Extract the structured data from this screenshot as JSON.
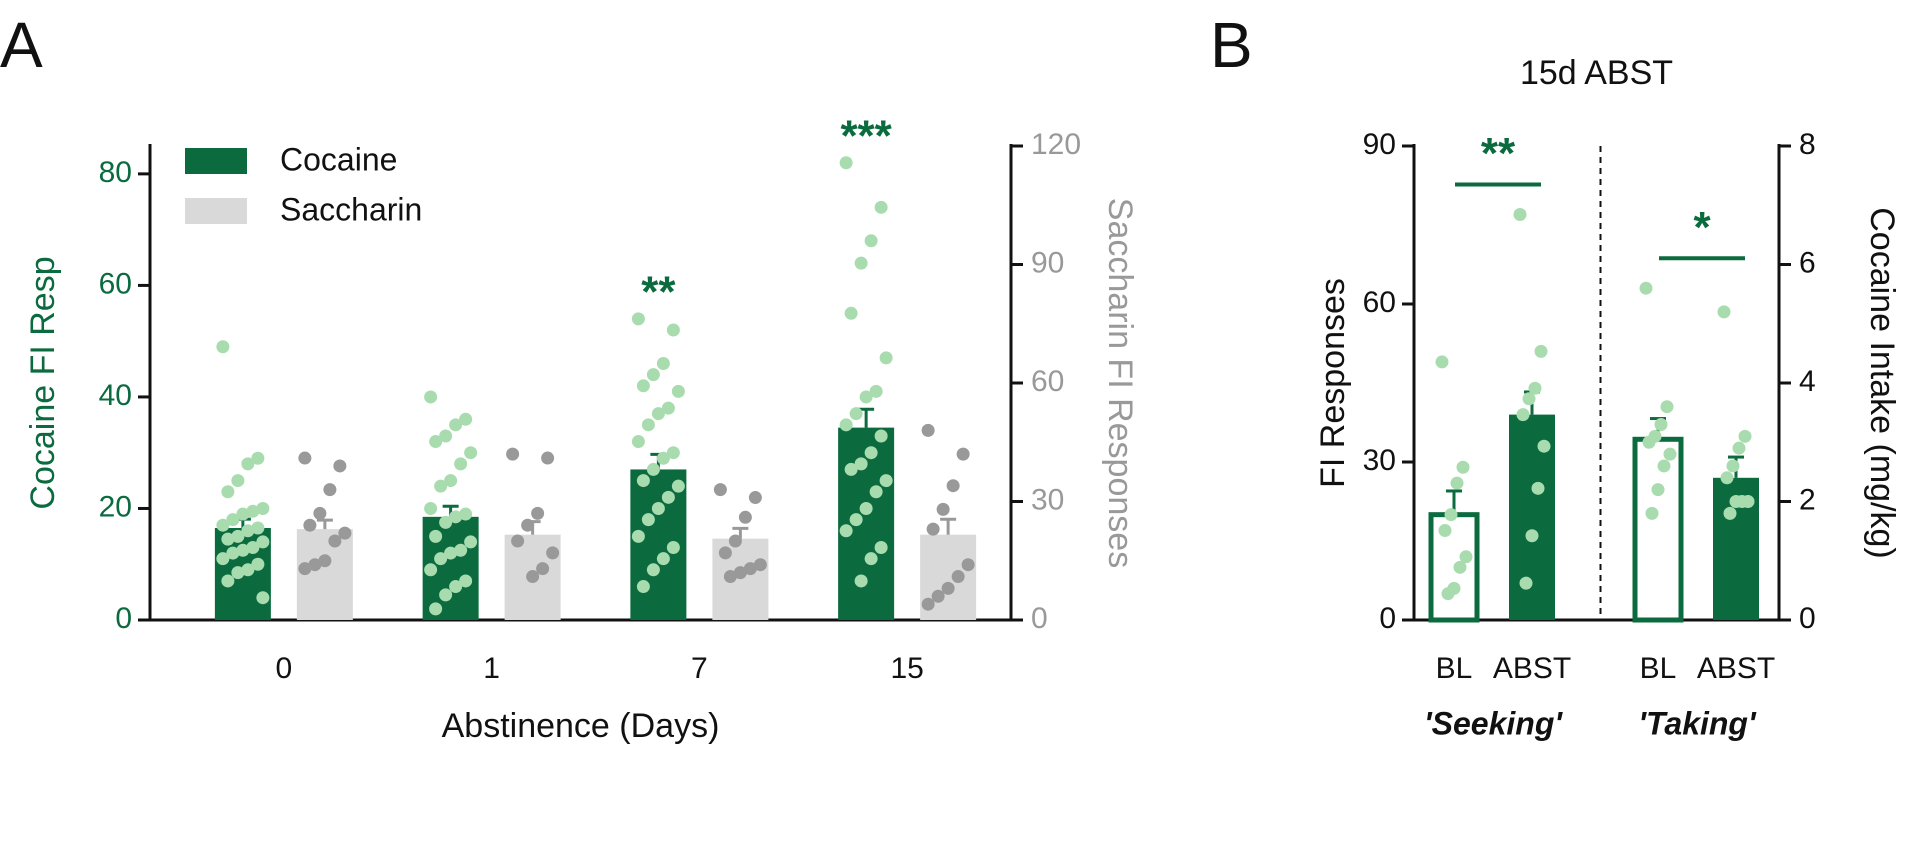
{
  "chart_data": [
    {
      "type": "bar",
      "panel": "A",
      "categories": [
        "0",
        "1",
        "7",
        "15"
      ],
      "xlabel": "Abstinence (Days)",
      "ylabel": "Cocaine FI Resp",
      "y2label": "Saccharin FI Responses",
      "ylim": [
        0,
        85
      ],
      "yticks": [
        0,
        20,
        40,
        60,
        80
      ],
      "y2lim": [
        0,
        120
      ],
      "y2ticks": [
        0,
        30,
        60,
        90,
        120
      ],
      "series": [
        {
          "name": "Cocaine",
          "color": "#0b6b3f",
          "point_color": "#a8dcae",
          "axis": "y",
          "values": [
            16.5,
            18.5,
            27,
            34.5
          ],
          "errors": [
            1.6,
            1.9,
            2.7,
            3.3
          ],
          "points": [
            [
              49,
              29,
              28,
              25,
              23,
              20,
              19.5,
              19,
              18,
              17,
              16.5,
              16,
              15,
              14.5,
              14,
              13,
              12.5,
              12,
              11,
              10,
              9,
              8.5,
              7,
              4
            ],
            [
              40,
              36,
              35,
              33,
              32,
              30,
              28,
              25,
              24,
              20,
              19,
              18.5,
              17.5,
              15,
              14,
              12.5,
              12,
              11,
              9,
              7,
              6,
              4.5,
              2
            ],
            [
              54,
              52,
              46,
              44,
              42,
              41,
              38,
              37,
              35,
              32,
              30,
              29,
              27,
              25,
              24,
              22,
              20,
              18,
              15,
              13,
              11,
              9,
              6
            ],
            [
              82,
              74,
              68,
              64,
              55,
              47,
              41,
              40,
              37,
              35,
              33,
              30,
              28,
              27,
              25,
              23,
              20,
              18,
              16,
              13,
              11,
              7
            ]
          ]
        },
        {
          "name": "Saccharin",
          "color": "#d9d9d9",
          "point_color": "#999999",
          "axis": "y2",
          "values": [
            23,
            21.6,
            20.6,
            21.6
          ],
          "errors": [
            2.3,
            3.3,
            2.6,
            3.9
          ],
          "points": [
            [
              41,
              39,
              33,
              27,
              24,
              22,
              20,
              15,
              14,
              13
            ],
            [
              42,
              41,
              27,
              24,
              20,
              17,
              13,
              11
            ],
            [
              33,
              31,
              26,
              20,
              17,
              14,
              13,
              12,
              11
            ],
            [
              48,
              42,
              34,
              28,
              23,
              14,
              11,
              8,
              6,
              4
            ]
          ]
        }
      ],
      "annotations": [
        {
          "text": "**",
          "category": "7"
        },
        {
          "text": "***",
          "category": "15"
        }
      ],
      "annotation_color": "#0b6b3f",
      "legend": "upper left"
    },
    {
      "type": "grouped-bar",
      "panel": "B",
      "title": "15d ABST",
      "ylabel": "FI Responses",
      "y2label": "Cocaine Intake (mg/kg)",
      "ylim": [
        0,
        90
      ],
      "yticks": [
        0,
        30,
        60,
        90
      ],
      "y2lim": [
        0,
        8
      ],
      "y2ticks": [
        0,
        2,
        4,
        6,
        8
      ],
      "color": "#0b6b3f",
      "point_color": "#a8dcae",
      "groups": [
        {
          "label": "'Seeking'",
          "axis": "y",
          "categories": [
            "BL",
            "ABST"
          ],
          "hollow": [
            true,
            false
          ],
          "values": [
            20,
            39
          ],
          "errors": [
            4.5,
            4.3
          ],
          "annotation": "**",
          "points": [
            [
              49,
              29,
              26,
              20,
              17,
              12,
              10,
              6,
              5
            ],
            [
              77,
              51,
              44,
              42,
              39,
              33,
              25,
              16,
              7
            ]
          ]
        },
        {
          "label": "'Taking'",
          "axis": "y2",
          "categories": [
            "BL",
            "ABST"
          ],
          "hollow": [
            true,
            false
          ],
          "values": [
            3.05,
            2.4
          ],
          "errors": [
            0.35,
            0.35
          ],
          "annotation": "*",
          "points": [
            [
              5.6,
              3.6,
              3.3,
              3.1,
              3.0,
              2.8,
              2.6,
              2.2,
              1.8
            ],
            [
              5.2,
              3.1,
              2.9,
              2.6,
              2.4,
              2.0,
              2.0,
              2.0,
              1.8
            ]
          ]
        }
      ]
    }
  ]
}
